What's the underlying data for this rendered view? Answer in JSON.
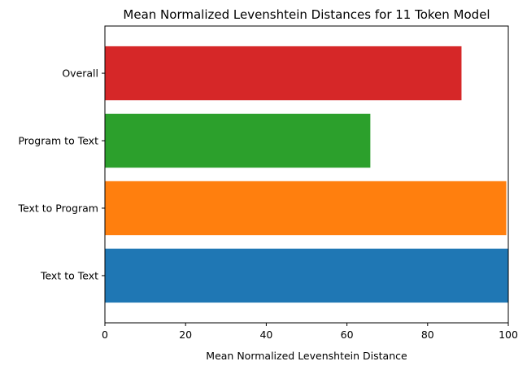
{
  "chart_data": {
    "type": "bar",
    "orientation": "horizontal",
    "title": "Mean Normalized Levenshtein Distances for 11 Token Model",
    "xlabel": "Mean Normalized Levenshtein Distance",
    "ylabel": "",
    "xlim": [
      0,
      100
    ],
    "xticks": [
      "0",
      "20",
      "40",
      "60",
      "80",
      "100"
    ],
    "categories": [
      "Text to Text",
      "Text to Program",
      "Program to Text",
      "Overall"
    ],
    "values": [
      100,
      99.5,
      65.8,
      88.4
    ],
    "colors": [
      "#1f77b4",
      "#ff7f0e",
      "#2ca02c",
      "#d62728"
    ],
    "grid": false,
    "legend": "none"
  }
}
